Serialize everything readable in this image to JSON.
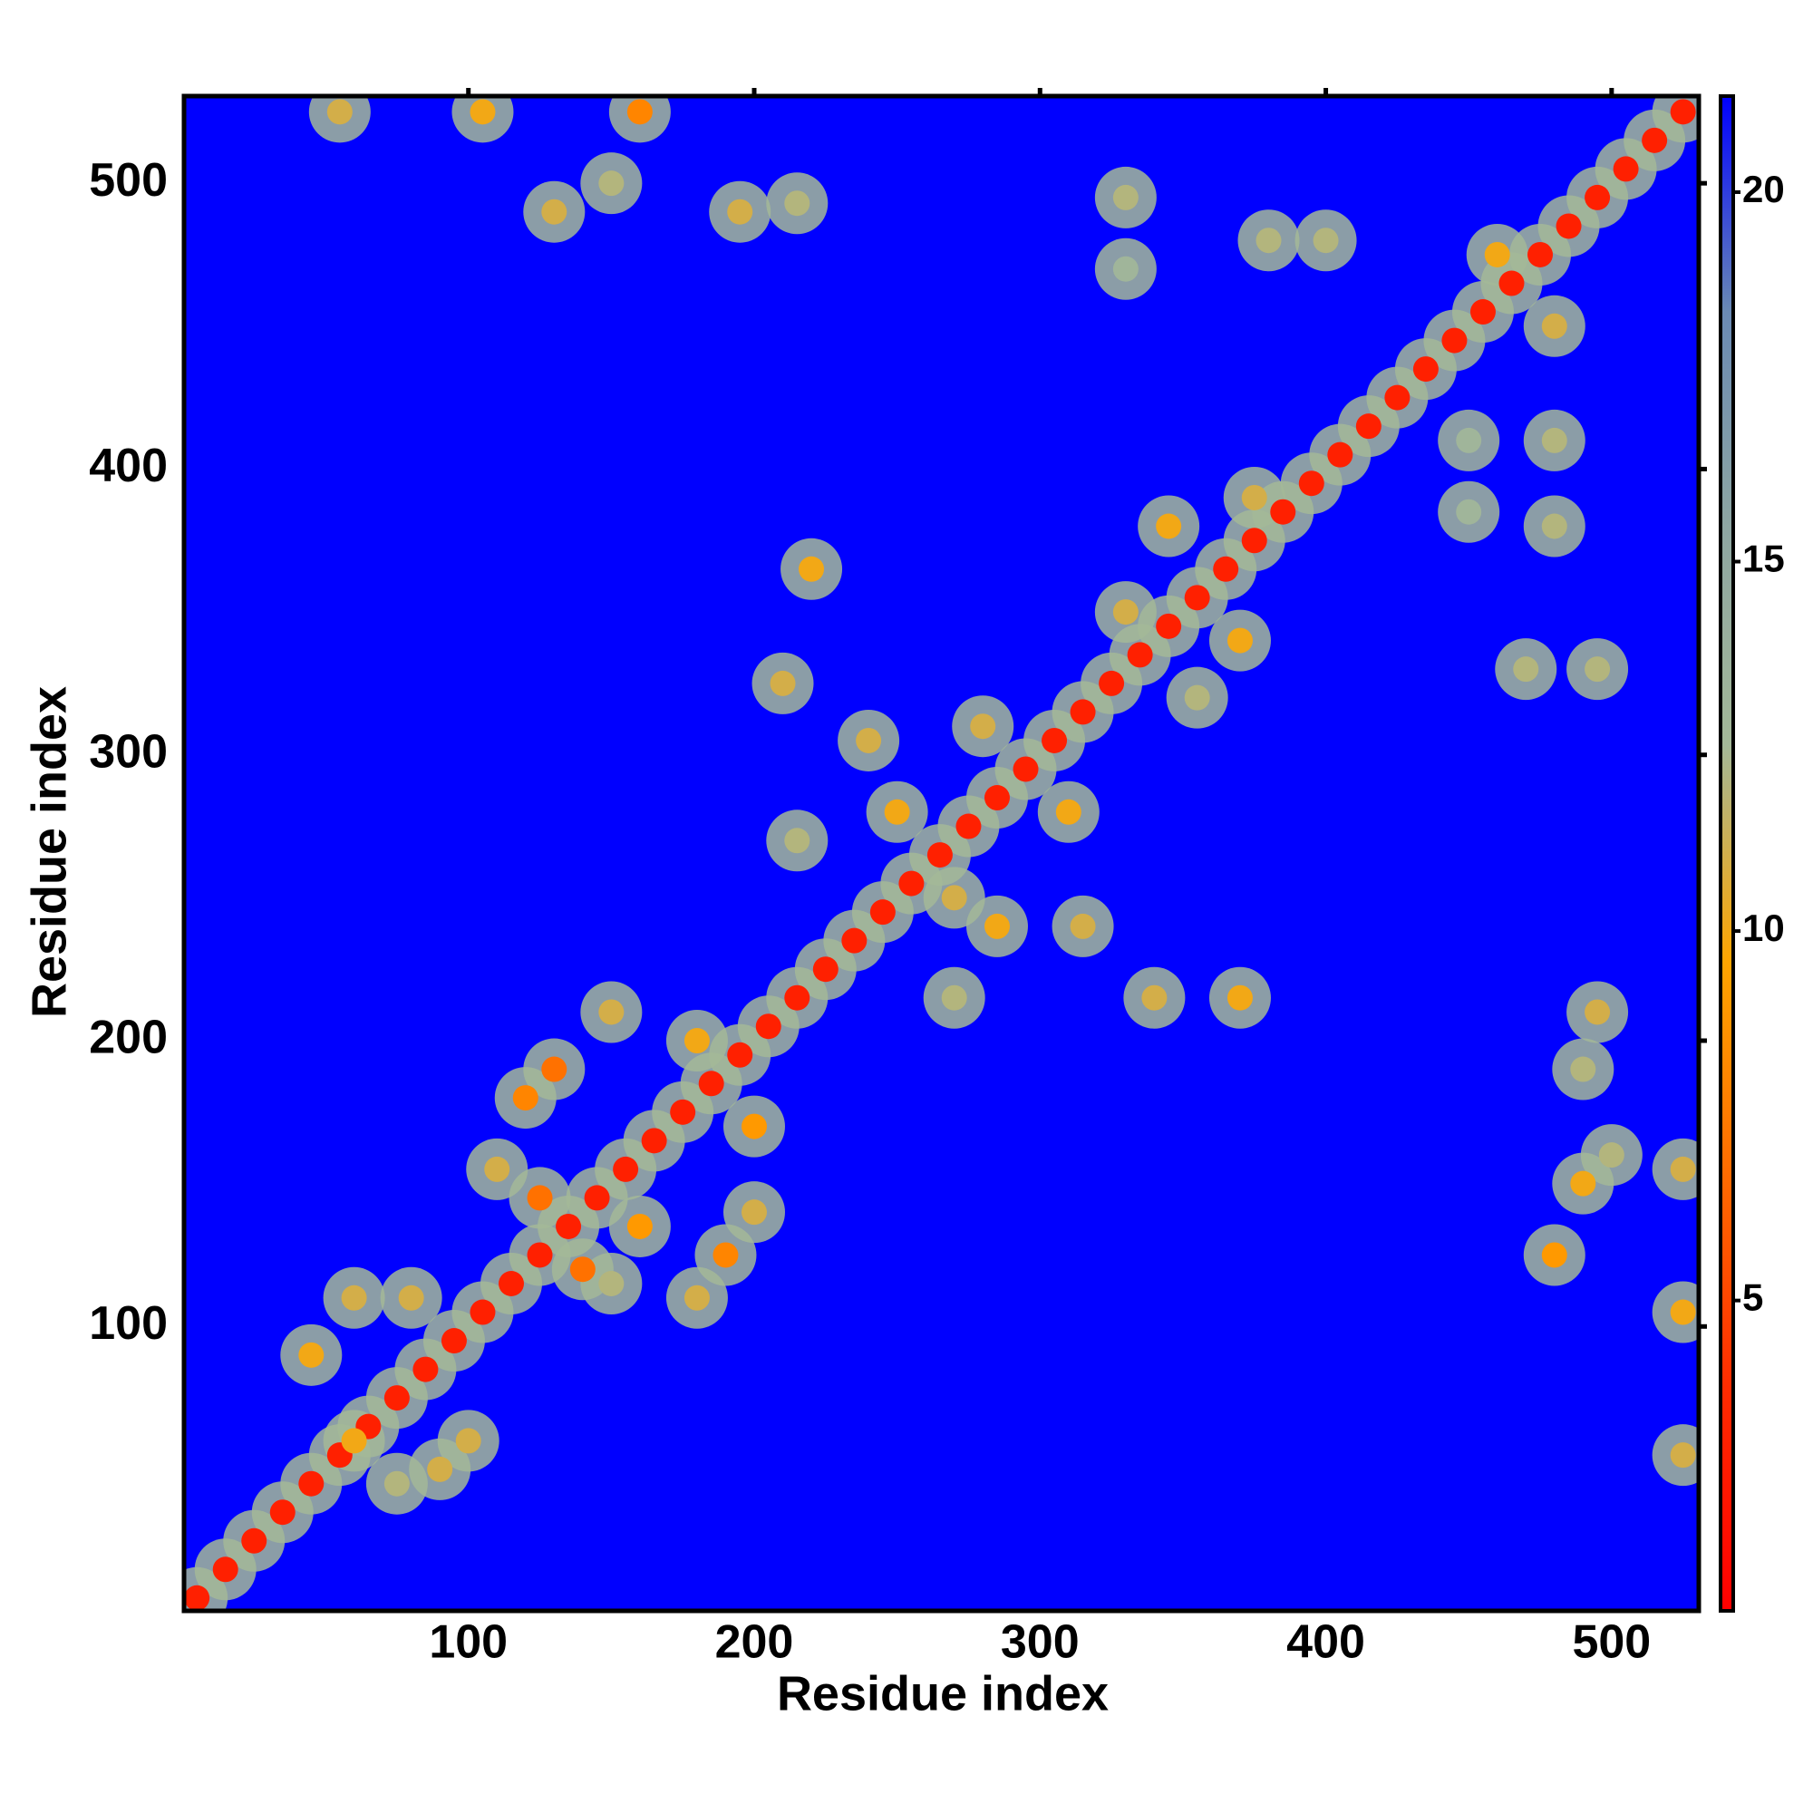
{
  "chart_data": {
    "type": "heatmap",
    "xlabel": "Residue index",
    "ylabel": "Residue index",
    "xlim": [
      0.5,
      530.5
    ],
    "ylim": [
      0.5,
      530.5
    ],
    "xticks": [
      100,
      200,
      300,
      400,
      500
    ],
    "yticks": [
      100,
      200,
      300,
      400,
      500
    ],
    "colorbar": {
      "clim": [
        0.8,
        21.3
      ],
      "ticks": [
        5,
        10,
        15,
        20
      ],
      "colormap": [
        "#ff0000",
        "#ff2a00",
        "#ff6a00",
        "#ffa500",
        "#a3b898",
        "#8ea6a2",
        "#6a8ab4",
        "#0000ff"
      ]
    },
    "contacts": {
      "x": [
        5,
        15,
        25,
        35,
        45,
        55,
        65,
        75,
        85,
        95,
        105,
        115,
        125,
        135,
        145,
        155,
        165,
        175,
        185,
        195,
        205,
        215,
        225,
        235,
        245,
        255,
        265,
        275,
        285,
        295,
        305,
        315,
        325,
        335,
        345,
        355,
        365,
        375,
        385,
        395,
        405,
        415,
        425,
        435,
        445,
        455,
        465,
        475,
        485,
        495,
        505,
        515,
        525,
        55,
        105,
        130,
        150,
        160,
        195,
        215,
        330,
        330,
        380,
        400,
        460,
        480,
        450,
        480,
        450,
        480,
        220,
        210,
        240,
        250,
        215,
        280,
        310,
        330,
        345,
        375,
        370,
        355,
        270,
        285,
        315,
        340,
        370,
        270,
        120,
        130,
        150,
        180,
        200,
        110,
        125,
        140,
        160,
        190,
        200,
        180,
        150,
        45,
        60,
        80,
        60,
        90,
        100,
        75,
        495,
        490,
        500,
        490,
        480,
        525,
        525,
        525,
        470,
        495
      ],
      "y": [
        5,
        15,
        25,
        35,
        45,
        55,
        65,
        75,
        85,
        95,
        105,
        115,
        125,
        135,
        145,
        155,
        165,
        175,
        185,
        195,
        205,
        215,
        225,
        235,
        245,
        255,
        265,
        275,
        285,
        295,
        305,
        315,
        325,
        335,
        345,
        355,
        365,
        375,
        385,
        395,
        405,
        415,
        425,
        435,
        445,
        455,
        465,
        475,
        485,
        495,
        505,
        515,
        525,
        525,
        525,
        490,
        500,
        525,
        490,
        493,
        495,
        470,
        480,
        480,
        475,
        450,
        410,
        410,
        385,
        380,
        365,
        325,
        305,
        280,
        270,
        310,
        280,
        350,
        380,
        390,
        340,
        320,
        250,
        240,
        240,
        215,
        215,
        215,
        180,
        190,
        210,
        200,
        170,
        155,
        145,
        120,
        135,
        125,
        140,
        110,
        115,
        90,
        110,
        110,
        60,
        50,
        60,
        45,
        210,
        190,
        160,
        150,
        125,
        155,
        105,
        55,
        330,
        330
      ],
      "values": [
        3,
        3,
        3,
        3,
        3,
        3,
        3,
        3,
        3,
        3,
        3,
        3,
        3,
        3,
        3,
        3,
        3,
        3,
        3,
        3,
        3,
        3,
        3,
        3,
        3,
        3,
        3,
        3,
        3,
        3,
        3,
        3,
        3,
        3,
        3,
        3,
        3,
        3,
        3,
        3,
        3,
        3,
        3,
        3,
        3,
        3,
        3,
        3,
        3,
        3,
        3,
        3,
        3,
        11,
        10,
        11,
        12,
        8,
        11,
        12,
        12,
        13,
        12,
        12,
        10,
        11,
        13,
        12,
        13,
        12,
        10,
        11,
        11,
        10,
        12,
        11,
        10,
        11,
        10,
        11,
        10,
        12,
        11,
        10,
        11,
        11,
        10,
        12,
        8,
        7,
        11,
        10,
        9,
        11,
        7,
        7,
        9,
        8,
        11,
        11,
        12,
        10,
        11,
        11,
        10,
        11,
        11,
        12,
        11,
        12,
        12,
        10,
        9,
        11,
        10,
        11,
        12,
        12
      ]
    }
  }
}
